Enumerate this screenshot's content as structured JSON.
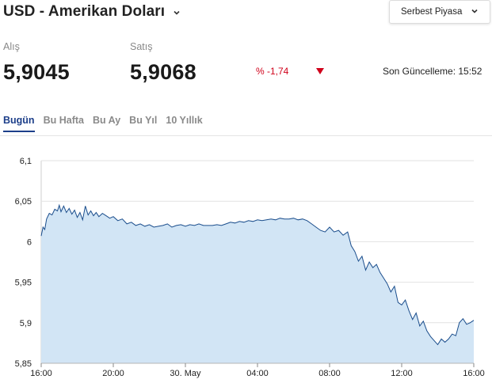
{
  "header": {
    "title": "USD - Amerikan Doları",
    "market_label": "Serbest Piyasa"
  },
  "prices": {
    "buy_label": "Alış",
    "buy_value": "5,9045",
    "sell_label": "Satış",
    "sell_value": "5,9068",
    "change": "% -1,74",
    "updated": "Son Güncelleme: 15:52"
  },
  "tabs": [
    {
      "label": "Bugün",
      "active": true
    },
    {
      "label": "Bu Hafta",
      "active": false
    },
    {
      "label": "Bu Ay",
      "active": false
    },
    {
      "label": "Bu Yıl",
      "active": false
    },
    {
      "label": "10 Yıllık",
      "active": false
    }
  ],
  "colors": {
    "accent": "#1d3f8a",
    "negative": "#d0021b",
    "line": "#1a4d8c",
    "fill": "#d2e5f5"
  },
  "icons": {
    "title_dropdown": "chevron-down-icon",
    "market_dropdown": "chevron-down-icon",
    "change_direction": "triangle-down-icon"
  },
  "chart_data": {
    "type": "area",
    "ylim": [
      5.85,
      6.1
    ],
    "yticks": [
      6.1,
      6.05,
      6.0,
      5.95,
      5.9,
      5.85
    ],
    "ytick_labels": [
      "6,1",
      "6,05",
      "6",
      "5,95",
      "5,9",
      "5,85"
    ],
    "xlim": [
      16.0,
      40.0
    ],
    "xticks": [
      16,
      20,
      24,
      28,
      32,
      36,
      40
    ],
    "xtick_labels": [
      "16:00",
      "20:00",
      "30. May",
      "04:00",
      "08:00",
      "12:00",
      "16:00"
    ],
    "grid": true,
    "series": [
      {
        "x": [
          16.0,
          16.1,
          16.2,
          16.3,
          16.45,
          16.6,
          16.75,
          16.9,
          17.0,
          17.1,
          17.25,
          17.4,
          17.55,
          17.7,
          17.85,
          18.0,
          18.15,
          18.3,
          18.45,
          18.6,
          18.75,
          18.9,
          19.05,
          19.2,
          19.4,
          19.6,
          19.8,
          20.0,
          20.25,
          20.5,
          20.75,
          21.0,
          21.25,
          21.5,
          21.75,
          22.0,
          22.25,
          22.5,
          22.75,
          23.0,
          23.25,
          23.5,
          23.75,
          24.0,
          24.25,
          24.5,
          24.75,
          25.0,
          25.25,
          25.5,
          25.75,
          26.0,
          26.25,
          26.5,
          26.75,
          27.0,
          27.25,
          27.5,
          27.75,
          28.0,
          28.25,
          28.5,
          28.75,
          29.0,
          29.25,
          29.5,
          29.75,
          30.0,
          30.25,
          30.5,
          30.75,
          31.0,
          31.25,
          31.5,
          31.75,
          32.0,
          32.25,
          32.5,
          32.75,
          33.0,
          33.2,
          33.4,
          33.6,
          33.8,
          34.0,
          34.2,
          34.4,
          34.6,
          34.8,
          35.0,
          35.2,
          35.4,
          35.6,
          35.8,
          36.0,
          36.2,
          36.4,
          36.6,
          36.8,
          37.0,
          37.2,
          37.4,
          37.6,
          37.8,
          38.0,
          38.2,
          38.4,
          38.6,
          38.8,
          39.0,
          39.2,
          39.4,
          39.6,
          39.8,
          40.0
        ],
        "y": [
          6.007,
          6.018,
          6.015,
          6.028,
          6.035,
          6.033,
          6.04,
          6.038,
          6.045,
          6.037,
          6.044,
          6.036,
          6.041,
          6.034,
          6.039,
          6.03,
          6.036,
          6.027,
          6.044,
          6.033,
          6.038,
          6.032,
          6.036,
          6.031,
          6.035,
          6.032,
          6.029,
          6.031,
          6.026,
          6.028,
          6.022,
          6.024,
          6.02,
          6.022,
          6.019,
          6.021,
          6.018,
          6.019,
          6.02,
          6.022,
          6.018,
          6.02,
          6.021,
          6.019,
          6.021,
          6.02,
          6.022,
          6.02,
          6.02,
          6.02,
          6.021,
          6.02,
          6.022,
          6.024,
          6.023,
          6.025,
          6.024,
          6.026,
          6.025,
          6.027,
          6.026,
          6.027,
          6.028,
          6.027,
          6.029,
          6.028,
          6.028,
          6.029,
          6.027,
          6.028,
          6.026,
          6.022,
          6.018,
          6.014,
          6.012,
          6.018,
          6.012,
          6.014,
          6.008,
          6.012,
          5.995,
          5.988,
          5.976,
          5.982,
          5.965,
          5.975,
          5.968,
          5.972,
          5.962,
          5.955,
          5.948,
          5.938,
          5.945,
          5.925,
          5.922,
          5.928,
          5.915,
          5.904,
          5.912,
          5.896,
          5.902,
          5.89,
          5.883,
          5.878,
          5.873,
          5.88,
          5.876,
          5.88,
          5.886,
          5.884,
          5.9,
          5.905,
          5.898,
          5.9,
          5.903
        ]
      }
    ]
  }
}
